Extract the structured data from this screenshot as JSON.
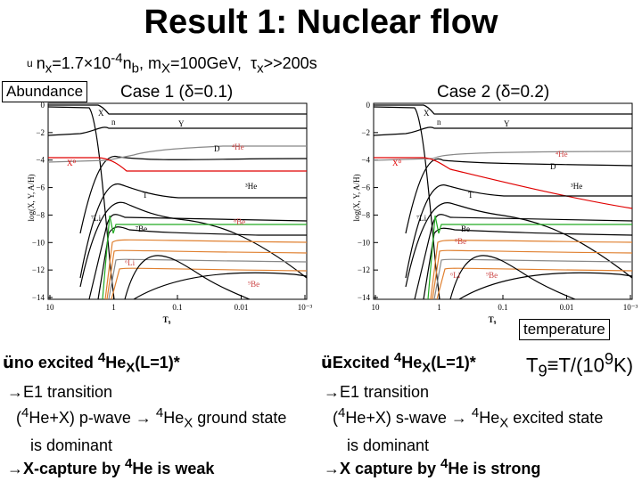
{
  "title": "Result 1: Nuclear flow",
  "params": {
    "bullet": "u",
    "nx_base": "n",
    "nx_sub": "x",
    "nx_eq": "=1.7×10",
    "nx_exp": "-4",
    "nx_n": "n",
    "nx_b": "b",
    "mx_sep": ", m",
    "mx_sub": "X",
    "mx_val": "=100GeV,",
    "tau": "τ",
    "tau_sub": "x",
    "tau_val": ">>200s"
  },
  "abundance_label": "Abundance",
  "temperature_label": "temperature",
  "case1": {
    "text": "Case 1 (",
    "delta": "δ",
    "val": "=0.1)"
  },
  "case2": {
    "text": "Case 2 (",
    "delta": "δ",
    "val": "=0.2)"
  },
  "plot": {
    "y_axis_label": "log(X, Y, A/H)",
    "x_axis_label": "T₉",
    "y_ticks": [
      "0",
      "−2",
      "−4",
      "−6",
      "−8",
      "−10",
      "−12",
      "−14"
    ],
    "x_ticks": [
      "10",
      "1",
      "0.1",
      "0.01",
      "10⁻³"
    ],
    "species_case1": [
      "X",
      "n",
      "Y",
      "D",
      "⁴He",
      "X⁰",
      "³He",
      "T",
      "⁷Li",
      "⁷Be",
      "⁸Be",
      "⁶Li",
      "⁹Be"
    ],
    "species_case2": [
      "X",
      "n",
      "Y",
      "⁴He",
      "D",
      "X⁰",
      "³He",
      "T",
      "⁷Li",
      "Be",
      "⁸Be",
      "⁶Li",
      "⁹Be"
    ]
  },
  "conclusion1": {
    "check": "ü",
    "text": "no excited ",
    "sup": "4",
    "he": "He",
    "sub": "X",
    "tail": "(L=1)*"
  },
  "conclusion2": {
    "check": "ü",
    "text": "Excited ",
    "sup": "4",
    "he": "He",
    "sub": "X",
    "tail": "(L=1)*"
  },
  "temp_def": {
    "t": "T",
    "sub": "9",
    "eq": "≡T/(10",
    "sup": "9",
    "tail": "K)"
  },
  "note1": {
    "line1": "→E1 transition",
    "line2_a": "(",
    "line2_sup": "4",
    "line2_b": "He+X) p-wave → ",
    "line2_sup2": "4",
    "line2_c": "He",
    "line2_sub": "X",
    "line2_d": " ground state",
    "line3": "is dominant"
  },
  "note2": {
    "line1": "→E1 transition",
    "line2_a": "(",
    "line2_sup": "4",
    "line2_b": "He+X) s-wave → ",
    "line2_sup2": "4",
    "line2_c": "He",
    "line2_sub": "X",
    "line2_d": " excited state",
    "line3": "is dominant"
  },
  "capture1": {
    "a": "→X-capture by ",
    "sup": "4",
    "b": "He is weak"
  },
  "capture2": {
    "a": "→X capture by ",
    "sup": "4",
    "b": "He is strong"
  }
}
